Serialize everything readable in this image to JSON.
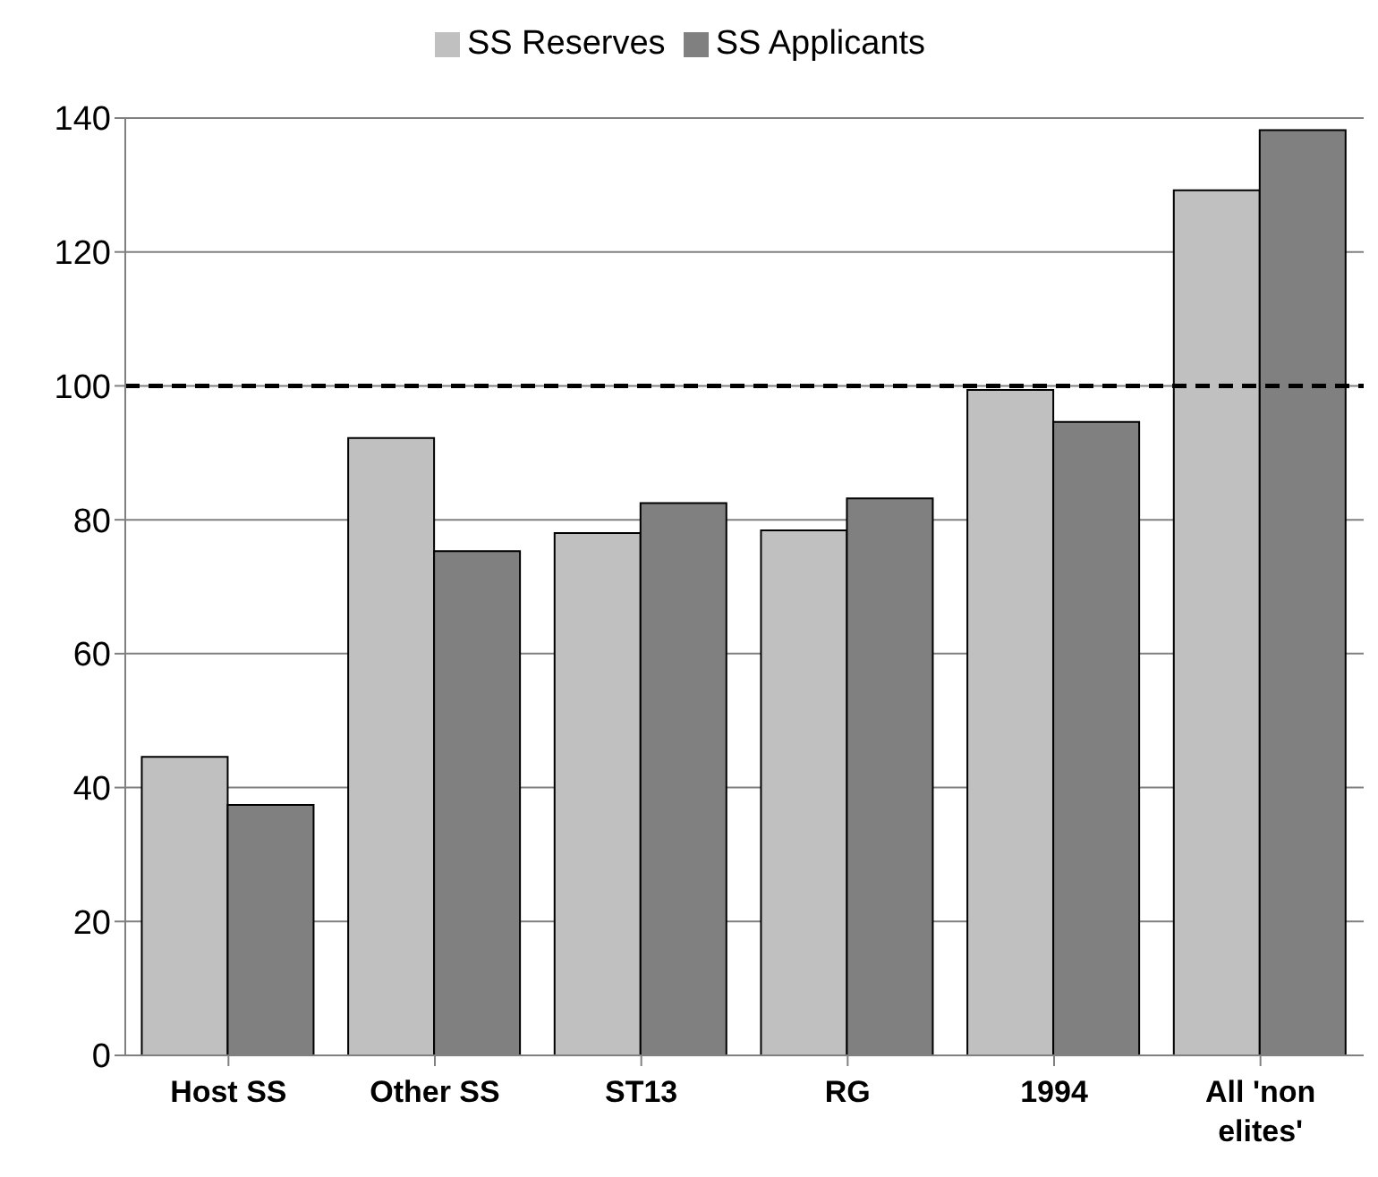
{
  "chart_data": {
    "type": "bar",
    "categories": [
      "Host SS",
      "Other SS",
      "ST13",
      "RG",
      "1994",
      "All 'non elites'"
    ],
    "series": [
      {
        "name": "SS Reserves",
        "color": "#c0c0c0",
        "values": [
          44.6,
          92.2,
          78.0,
          78.4,
          99.4,
          129.2
        ]
      },
      {
        "name": "SS Applicants",
        "color": "#808080",
        "values": [
          37.4,
          75.3,
          82.5,
          83.2,
          94.6,
          138.2
        ]
      }
    ],
    "ylim": [
      0,
      140
    ],
    "yticks": [
      0,
      20,
      40,
      60,
      80,
      100,
      120,
      140
    ],
    "grid": "y",
    "legend": "top",
    "ref_lines": [
      {
        "axis": "y",
        "value": 100,
        "color": "#000000",
        "line_style": "dashed"
      }
    ]
  }
}
